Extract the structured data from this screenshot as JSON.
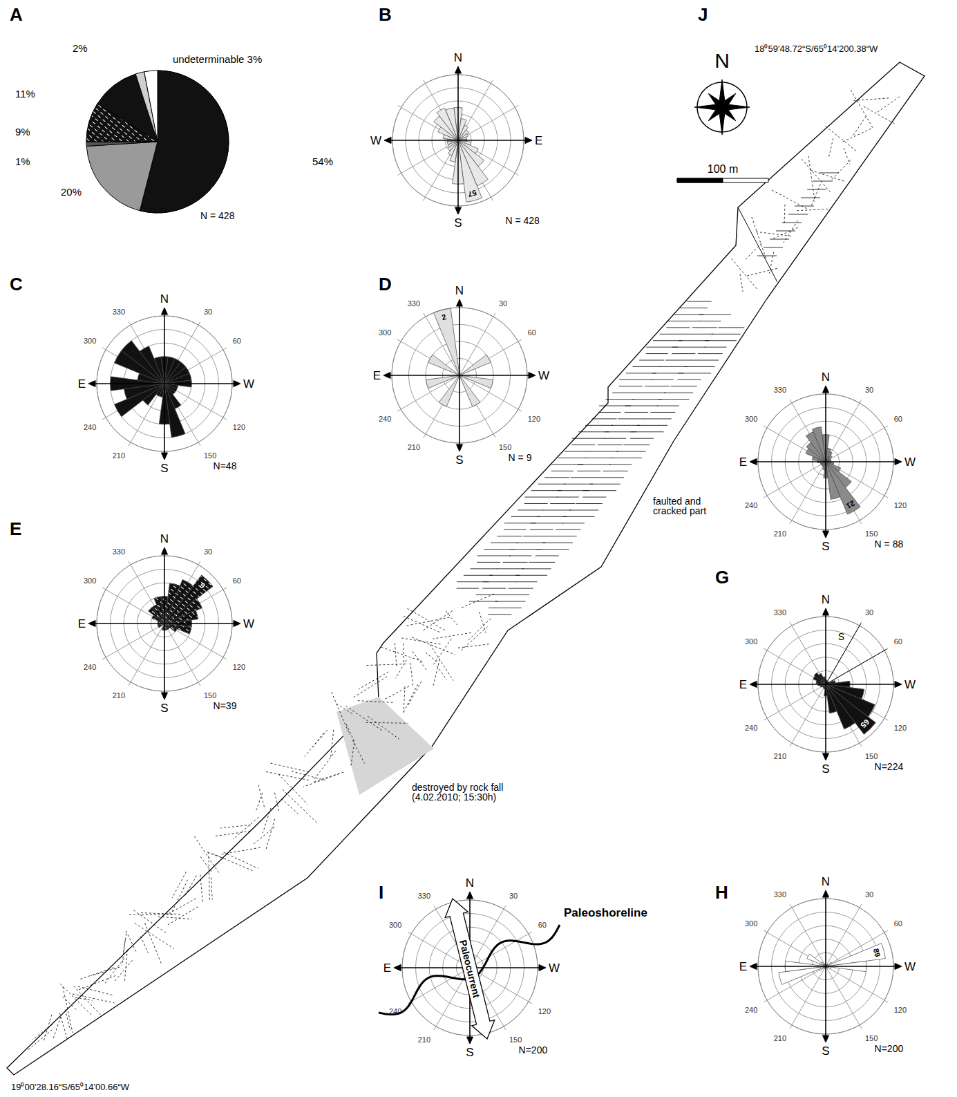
{
  "chart_data": [
    {
      "type": "pie",
      "title": "A",
      "values": [
        54,
        20,
        1,
        9,
        11,
        2,
        3
      ],
      "value_labels": [
        "54%",
        "20%",
        "1%",
        "9%",
        "11%",
        "2%",
        "undeterminable 3%"
      ],
      "colors": [
        "#111111",
        "#9a9a9a",
        "#555555",
        "#111111",
        "#111111",
        "#cfcfcf",
        "#ffffff"
      ],
      "annotations": [
        "N = 428"
      ]
    },
    {
      "type": "rose",
      "title": "B",
      "categories": [
        "N",
        null,
        null,
        null,
        null,
        null,
        "E",
        null,
        null,
        null,
        null,
        null,
        "S",
        null,
        null,
        null,
        null,
        null,
        "W",
        null,
        null,
        null,
        null,
        null
      ],
      "values": [
        30,
        20,
        15,
        12,
        10,
        8,
        8,
        12,
        20,
        30,
        45,
        57,
        40,
        20,
        15,
        12,
        10,
        10,
        10,
        14,
        20,
        28,
        32,
        30
      ],
      "value_labels": [
        null,
        null,
        null,
        null,
        null,
        null,
        null,
        null,
        null,
        null,
        null,
        "57",
        null,
        null,
        null,
        null,
        null,
        null,
        null,
        null,
        null,
        null,
        null,
        null
      ],
      "color": "#e8e8e8",
      "ylim": [
        0,
        60
      ],
      "yticks": [
        0,
        12,
        24,
        36,
        48,
        60
      ],
      "grid": true,
      "tick_labels": "x",
      "annotations": [
        "N = 428"
      ]
    },
    {
      "type": "rose",
      "title": "C",
      "categories": [
        "N",
        null,
        "30",
        null,
        "60",
        null,
        "W",
        null,
        "120",
        null,
        "150",
        null,
        "S",
        null,
        "210",
        null,
        "240",
        null,
        "E",
        null,
        "300",
        null,
        "330",
        null
      ],
      "values": [
        2,
        2,
        2,
        2,
        2,
        2,
        2,
        1,
        1,
        1,
        2,
        4,
        3,
        1,
        1,
        2,
        4,
        3,
        4,
        2,
        4,
        4,
        3,
        2
      ],
      "color": "#111111",
      "ylim": [
        0,
        5
      ],
      "yticks": [
        0,
        1,
        2,
        3,
        4,
        5
      ],
      "grid": true,
      "tick_labels": "x",
      "annotations": [
        "N=48"
      ]
    },
    {
      "type": "rose",
      "title": "D",
      "categories": [
        "N",
        null,
        "30",
        null,
        "60",
        null,
        "W",
        null,
        "120",
        null,
        "150",
        null,
        "S",
        null,
        "210",
        null,
        "240",
        null,
        "E",
        null,
        "300",
        null,
        "330",
        null
      ],
      "values": [
        0,
        0,
        0,
        0,
        1,
        0,
        0,
        1,
        0,
        0,
        1,
        0,
        0,
        0,
        1,
        0,
        0,
        1,
        0,
        0,
        1,
        0,
        0,
        2
      ],
      "value_labels": [
        null,
        null,
        null,
        null,
        null,
        null,
        null,
        null,
        null,
        null,
        null,
        null,
        null,
        null,
        null,
        null,
        null,
        null,
        null,
        null,
        null,
        null,
        null,
        "2"
      ],
      "color": "#e0e0e0",
      "ylim": [
        0,
        2
      ],
      "yticks": [
        0,
        0.5,
        1,
        1.5,
        2
      ],
      "grid": true,
      "tick_labels": "x",
      "annotations": [
        "N = 9"
      ]
    },
    {
      "type": "rose",
      "title": "E",
      "categories": [
        "N",
        null,
        "30",
        null,
        "60",
        null,
        "W",
        null,
        "120",
        null,
        "150",
        null,
        "S",
        null,
        "210",
        null,
        "240",
        null,
        "E",
        null,
        "300",
        null,
        "330",
        null
      ],
      "values": [
        4,
        6,
        7,
        9,
        6,
        5,
        4,
        4,
        2,
        1,
        1,
        1,
        1,
        1,
        0,
        0,
        1,
        1,
        1,
        1,
        2,
        3,
        3,
        4
      ],
      "value_labels": [
        null,
        null,
        null,
        "9",
        null,
        null,
        null,
        null,
        null,
        null,
        null,
        null,
        null,
        null,
        null,
        null,
        null,
        null,
        null,
        null,
        null,
        null,
        null,
        null
      ],
      "color": "#111111",
      "ylim": [
        0,
        10
      ],
      "yticks": [
        0,
        2,
        4,
        6,
        8,
        10
      ],
      "grid": true,
      "tick_labels": "x",
      "annotations": [
        "N=39"
      ]
    },
    {
      "type": "rose",
      "categories": [
        "N",
        null,
        "30",
        null,
        "60",
        null,
        "W",
        null,
        "120",
        null,
        "150",
        null,
        "S",
        null,
        "210",
        null,
        "240",
        null,
        "E",
        null,
        "300",
        null,
        "330",
        null
      ],
      "values": [
        10,
        5,
        4,
        3,
        2,
        2,
        2,
        3,
        6,
        12,
        21,
        14,
        6,
        3,
        2,
        2,
        2,
        2,
        3,
        5,
        8,
        9,
        12,
        13
      ],
      "value_labels": [
        null,
        null,
        null,
        null,
        null,
        null,
        null,
        null,
        null,
        null,
        "21",
        null,
        null,
        null,
        null,
        null,
        null,
        null,
        null,
        null,
        null,
        null,
        null,
        null
      ],
      "color": "#8a8a8a",
      "ylim": [
        0,
        25
      ],
      "yticks": [
        0,
        5,
        10,
        15,
        20,
        25
      ],
      "grid": true,
      "tick_labels": "x",
      "annotations": [
        "N = 88"
      ]
    },
    {
      "type": "rose",
      "title": "G",
      "categories": [
        "N",
        null,
        "30",
        null,
        "60",
        null,
        "W",
        null,
        "120",
        null,
        "150",
        null,
        "S",
        null,
        "210",
        null,
        "240",
        null,
        "E",
        null,
        "300",
        null,
        "330",
        null
      ],
      "values": [
        5,
        4,
        3,
        3,
        4,
        10,
        25,
        40,
        55,
        65,
        50,
        30,
        12,
        5,
        4,
        4,
        5,
        6,
        8,
        10,
        14,
        15,
        12,
        8
      ],
      "value_labels": [
        null,
        null,
        null,
        null,
        null,
        null,
        null,
        null,
        null,
        "65",
        null,
        null,
        null,
        null,
        null,
        null,
        null,
        null,
        null,
        null,
        null,
        null,
        null,
        null
      ],
      "color": "#111111",
      "ylim": [
        0,
        70
      ],
      "yticks": [
        0,
        14,
        28,
        42,
        56,
        70
      ],
      "grid": true,
      "tick_labels": "x",
      "annotations": [
        "N=224",
        "S"
      ]
    },
    {
      "type": "rose",
      "title": "H",
      "categories": [
        "N",
        null,
        "30",
        null,
        "60",
        null,
        "W",
        null,
        "120",
        null,
        "150",
        null,
        "S",
        null,
        "210",
        null,
        "240",
        null,
        "E",
        null,
        "300",
        null,
        "330",
        null
      ],
      "values": [
        3,
        2,
        3,
        4,
        10,
        89,
        60,
        8,
        4,
        3,
        3,
        2,
        3,
        2,
        3,
        4,
        10,
        70,
        60,
        10,
        30,
        8,
        4,
        3
      ],
      "value_labels": [
        null,
        null,
        null,
        null,
        null,
        "89",
        null,
        null,
        null,
        null,
        null,
        null,
        null,
        null,
        null,
        null,
        null,
        null,
        null,
        null,
        null,
        null,
        null,
        null
      ],
      "color": "#ffffff",
      "ylim": [
        0,
        100
      ],
      "yticks": [
        0,
        20,
        40,
        60,
        80,
        100
      ],
      "grid": true,
      "tick_labels": "x",
      "annotations": [
        "N=200"
      ]
    },
    {
      "type": "rose",
      "title": "I",
      "categories": [
        "N",
        null,
        "30",
        null,
        "60",
        null,
        "W",
        null,
        "120",
        null,
        "150",
        null,
        "S",
        null,
        "210",
        null,
        "240",
        null,
        "E",
        null,
        "300",
        null,
        "330",
        null
      ],
      "ylim": [
        0,
        5
      ],
      "yticks": [
        0,
        1,
        2,
        3,
        4,
        5
      ],
      "grid": true,
      "tick_labels": "x",
      "annotations": [
        "N=200",
        "Paleocurrent",
        "Paleoshoreline"
      ]
    }
  ],
  "map": {
    "title": "J",
    "north": "N",
    "scale_label": "100 m",
    "coord_top": "18⁰59'48.72“S/65⁰14'200.38“W",
    "coord_bottom": "19⁰00'28.16“S/65⁰14'00.66“W",
    "labels": [
      "faulted and cracked part",
      "destroyed by rock fall (4.02.2010; 15:30h)"
    ]
  }
}
